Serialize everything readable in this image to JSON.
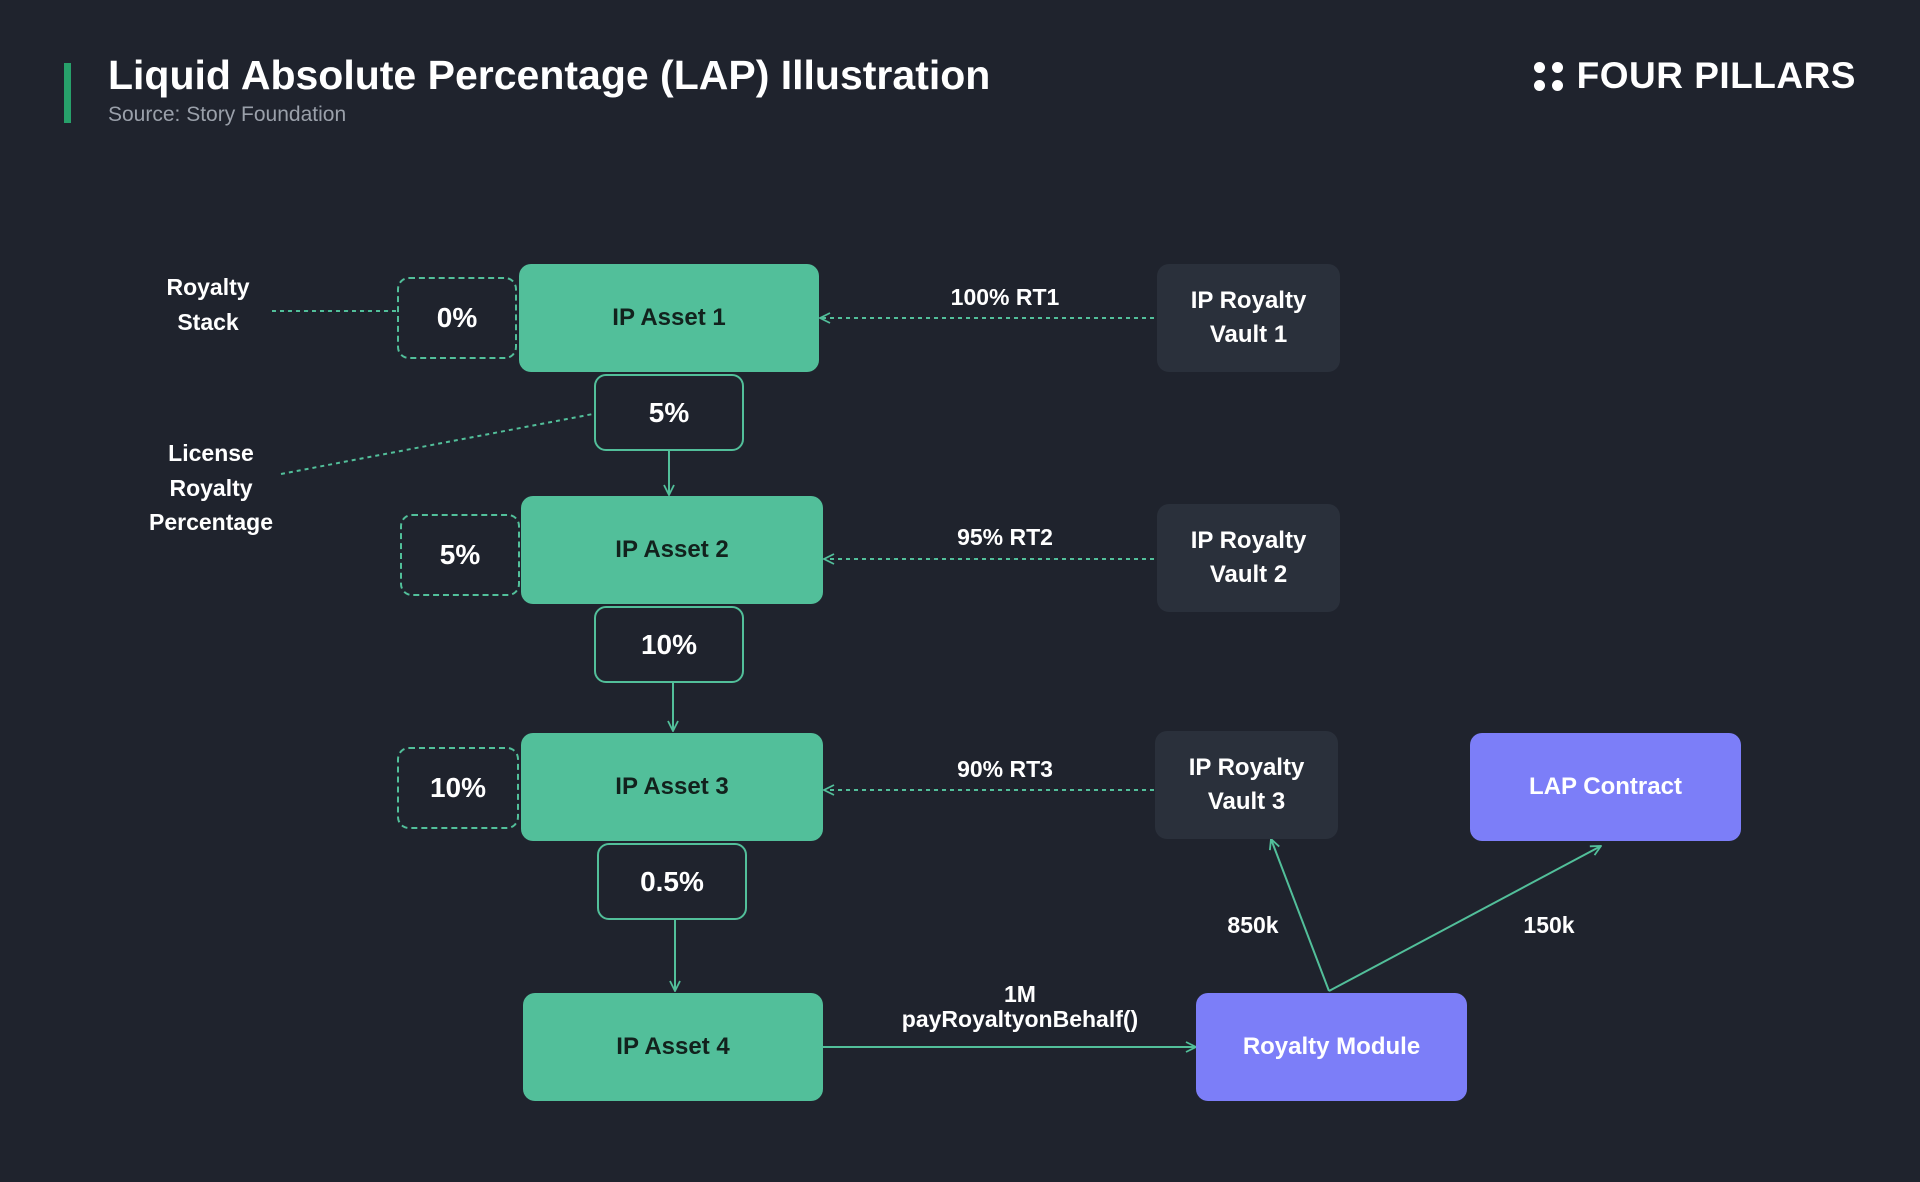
{
  "header": {
    "title": "Liquid Absolute Percentage (LAP) Illustration",
    "subtitle": "Source: Story Foundation",
    "brand": "FOUR PILLARS"
  },
  "colors": {
    "background": "#1f232d",
    "asset": "#52bf9a",
    "vault": "#2a303b",
    "module": "#7c7ef8",
    "accent": "#27a06a",
    "line": "#52bf9a"
  },
  "side_labels": {
    "royalty_stack": [
      "Royalty",
      "Stack"
    ],
    "license_percentage": [
      "License",
      "Royalty",
      "Percentage"
    ]
  },
  "assets": [
    "IP Asset 1",
    "IP Asset 2",
    "IP Asset 3",
    "IP Asset 4"
  ],
  "royalty_stack_values": [
    "0%",
    "5%",
    "10%"
  ],
  "license_percentages": [
    "5%",
    "10%",
    "0.5%"
  ],
  "vaults": [
    [
      "IP Royalty",
      "Vault 1"
    ],
    [
      "IP Royalty",
      "Vault 2"
    ],
    [
      "IP Royalty",
      "Vault 3"
    ]
  ],
  "vault_flows": [
    "100% RT1",
    "95% RT2",
    "90% RT3"
  ],
  "lap_contract": "LAP Contract",
  "royalty_module": "Royalty Module",
  "payment": {
    "amount": "1M",
    "method": "payRoyaltyonBehalf()"
  },
  "split": {
    "to_vault": "850k",
    "to_lap": "150k"
  }
}
